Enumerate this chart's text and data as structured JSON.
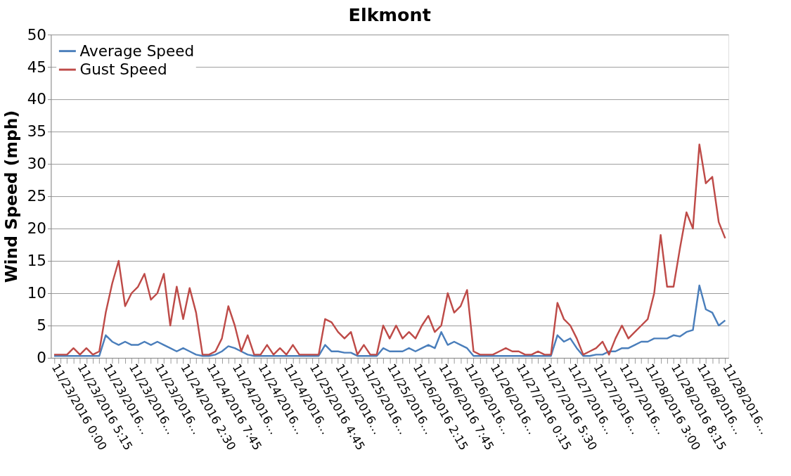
{
  "chart_data": {
    "type": "line",
    "title": "Elkmont",
    "ylabel": "Wind Speed (mph)",
    "categories": [
      "11/23/2016 0:00",
      null,
      null,
      null,
      "11/23/2016 5:15",
      null,
      null,
      null,
      "11/23/2016…",
      null,
      null,
      null,
      "11/23/2016…",
      null,
      null,
      null,
      "11/23/2016…",
      null,
      null,
      null,
      "11/24/2016 2:30",
      null,
      null,
      null,
      "11/24/2016 7:45",
      null,
      null,
      null,
      "11/24/2016…",
      null,
      null,
      null,
      "11/24/2016…",
      null,
      null,
      null,
      "11/24/2016…",
      null,
      null,
      null,
      "11/25/2016 4:45",
      null,
      null,
      null,
      "11/25/2016…",
      null,
      null,
      null,
      "11/25/2016…",
      null,
      null,
      null,
      "11/25/2016…",
      null,
      null,
      null,
      "11/26/2016 2:15",
      null,
      null,
      null,
      "11/26/2016 7:45",
      null,
      null,
      null,
      "11/26/2016…",
      null,
      null,
      null,
      "11/26/2016…",
      null,
      null,
      null,
      "11/27/2016 0:15",
      null,
      null,
      null,
      "11/27/2016 5:30",
      null,
      null,
      null,
      "11/27/2016…",
      null,
      null,
      null,
      "11/27/2016…",
      null,
      null,
      null,
      "11/27/2016…",
      null,
      null,
      null,
      "11/28/2016 3:00",
      null,
      null,
      null,
      "11/28/2016 8:15",
      null,
      null,
      null,
      "11/28/2016…",
      null,
      null,
      null,
      "11/28/2016…"
    ],
    "series": [
      {
        "name": "Average Speed",
        "color": "#4a7ebb",
        "values": [
          0.3,
          0.3,
          0.3,
          0.3,
          0.3,
          0.3,
          0.3,
          0.3,
          3.5,
          2.5,
          2,
          2.5,
          2,
          2,
          2.5,
          2,
          2.5,
          2,
          1.5,
          1,
          1.5,
          1,
          0.5,
          0.3,
          0.3,
          0.5,
          1,
          1.8,
          1.5,
          1,
          0.5,
          0.3,
          0.3,
          0.3,
          0.3,
          0.3,
          0.3,
          0.3,
          0.3,
          0.3,
          0.3,
          0.3,
          2,
          1,
          1,
          0.8,
          0.8,
          0.3,
          0.3,
          0.3,
          0.3,
          1.5,
          1,
          1,
          1,
          1.5,
          1,
          1.5,
          2,
          1.5,
          4,
          2,
          2.5,
          2,
          1.5,
          0.3,
          0.3,
          0.3,
          0.3,
          0.3,
          0.3,
          0.3,
          0.3,
          0.3,
          0.3,
          0.3,
          0.3,
          0.3,
          3.5,
          2.5,
          3,
          1.5,
          0.3,
          0.3,
          0.5,
          0.5,
          1,
          1,
          1.5,
          1.5,
          2,
          2.5,
          2.5,
          3,
          3,
          3,
          3.5,
          3.3,
          4,
          4.3,
          11.2,
          7.5,
          7,
          5,
          5.8
        ]
      },
      {
        "name": "Gust Speed",
        "color": "#be4b48",
        "values": [
          0.5,
          0.5,
          0.5,
          1.5,
          0.5,
          1.5,
          0.5,
          1,
          7,
          11.5,
          15,
          8,
          10,
          11,
          13,
          9,
          10,
          13,
          5,
          11,
          6,
          10.8,
          7,
          0.5,
          0.5,
          1,
          3,
          8,
          5,
          1,
          3.5,
          0.5,
          0.5,
          2,
          0.5,
          1.5,
          0.5,
          2,
          0.5,
          0.5,
          0.5,
          0.5,
          6,
          5.5,
          4,
          3,
          4,
          0.5,
          2,
          0.5,
          0.5,
          5,
          3,
          5,
          3,
          4,
          3,
          5,
          6.5,
          4,
          5,
          10,
          7,
          8,
          10.5,
          1,
          0.5,
          0.5,
          0.5,
          1,
          1.5,
          1,
          1,
          0.5,
          0.5,
          1,
          0.5,
          0.5,
          8.5,
          6,
          5,
          3,
          0.5,
          1,
          1.5,
          2.5,
          0.5,
          3,
          5,
          3,
          4,
          5,
          6,
          10,
          19,
          11,
          11,
          17,
          22.5,
          20,
          33,
          27,
          28,
          21,
          18.5
        ]
      }
    ],
    "ylim": [
      0,
      50
    ],
    "yticks": [
      0,
      5,
      10,
      15,
      20,
      25,
      30,
      35,
      40,
      45,
      50
    ],
    "grid": "y",
    "legend": "top left"
  }
}
